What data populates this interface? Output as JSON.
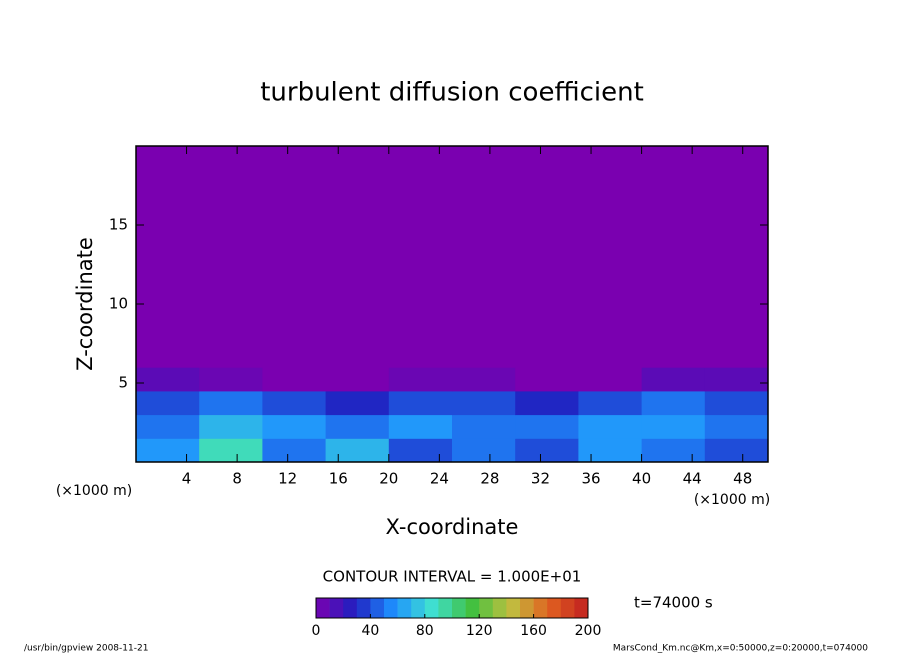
{
  "chart_data": {
    "type": "contour",
    "title": "turbulent diffusion coefficient",
    "xlabel": "X-coordinate",
    "ylabel": "Z-coordinate",
    "xunit_left": "(×1000 m)",
    "xunit_right": "(×1000 m)",
    "xlim": [
      0,
      50
    ],
    "ylim": [
      0,
      20
    ],
    "xticks": [
      4,
      8,
      12,
      16,
      20,
      24,
      28,
      32,
      36,
      40,
      44,
      48
    ],
    "yticks": [
      5,
      10,
      15
    ],
    "x_edges": [
      0,
      5,
      10,
      15,
      20,
      25,
      30,
      35,
      40,
      45,
      50
    ],
    "z_edges": [
      0,
      1.5,
      3,
      4.5,
      6,
      20
    ],
    "values": [
      [
        60,
        90,
        50,
        70,
        40,
        50,
        40,
        60,
        50,
        40
      ],
      [
        50,
        70,
        60,
        50,
        60,
        50,
        50,
        60,
        60,
        50
      ],
      [
        40,
        50,
        40,
        30,
        40,
        40,
        30,
        40,
        50,
        40
      ],
      [
        10,
        5,
        0,
        0,
        5,
        5,
        0,
        0,
        10,
        10
      ],
      [
        0,
        0,
        0,
        0,
        0,
        0,
        0,
        0,
        0,
        0
      ]
    ],
    "colors": [
      "#7a00b0",
      "#2020c0",
      "#1e90ff",
      "#40e0d0",
      "#40c040",
      "#c0c040",
      "#e06020",
      "#c02020"
    ],
    "contour_interval_label": "CONTOUR INTERVAL = 1.000E+01",
    "time_label": "t=74000 s",
    "colorbar": {
      "levels": [
        0,
        10,
        20,
        30,
        40,
        50,
        60,
        70,
        80,
        90,
        100,
        110,
        120,
        130,
        140,
        150,
        160,
        170,
        180,
        190,
        200
      ],
      "ticks": [
        0,
        40,
        80,
        120,
        160,
        200
      ]
    },
    "footer_left": "/usr/bin/gpview  2008-11-21",
    "footer_right": "MarsCond_Km.nc@Km,x=0:50000,z=0:20000,t=074000"
  }
}
